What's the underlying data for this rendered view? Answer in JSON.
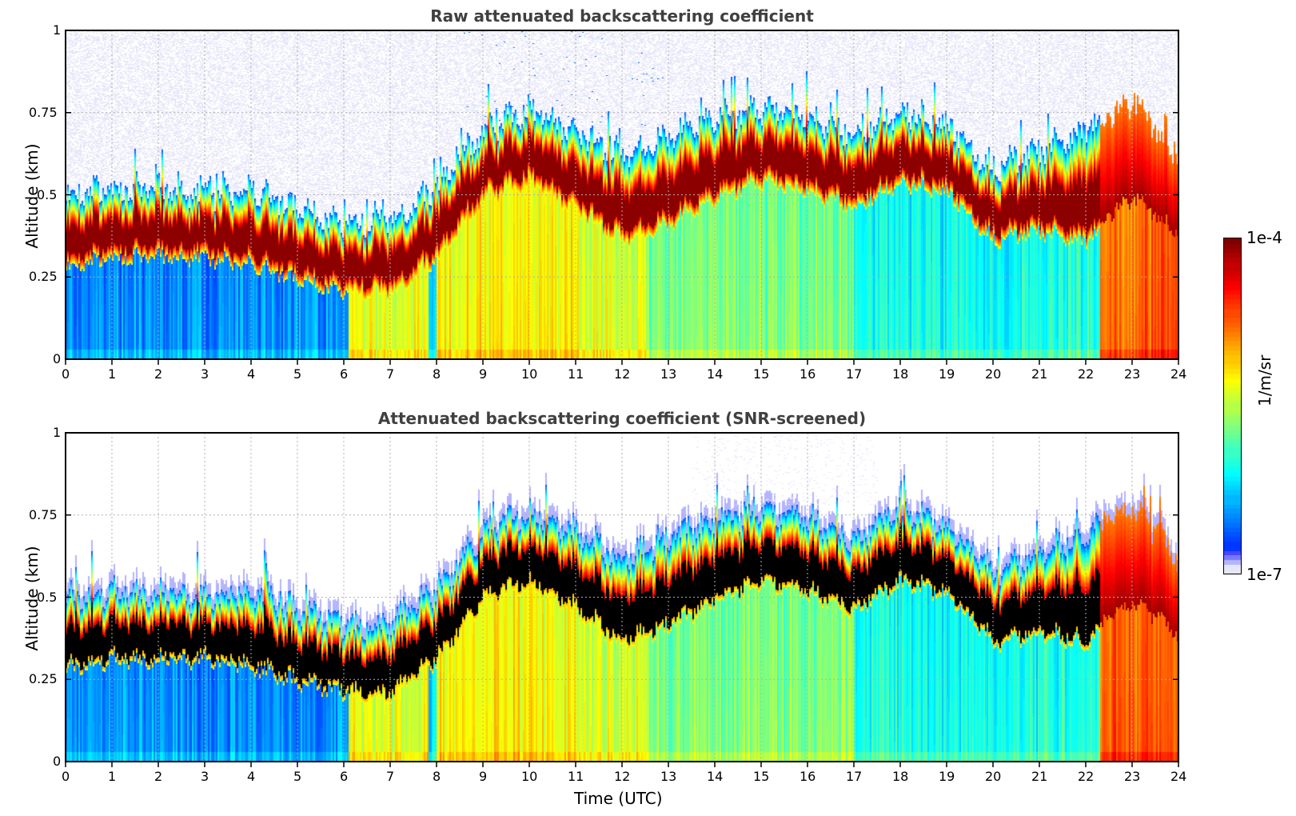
{
  "chart_data": [
    {
      "type": "heatmap",
      "title": "Raw attenuated backscattering coefficient",
      "xlabel": "",
      "ylabel": "Altitude (km)",
      "xlim": [
        0,
        24
      ],
      "ylim": [
        0,
        1
      ],
      "xticks": [
        "0",
        "1",
        "2",
        "3",
        "4",
        "5",
        "6",
        "7",
        "8",
        "9",
        "10",
        "11",
        "12",
        "13",
        "14",
        "15",
        "16",
        "17",
        "18",
        "19",
        "20",
        "21",
        "22",
        "23",
        "24"
      ],
      "yticks": [
        "0",
        "0.25",
        "0.5",
        "0.75",
        "1"
      ],
      "grid": true,
      "snr_screened": false,
      "time_hours": [
        0,
        1,
        2,
        3,
        4,
        5,
        6,
        7,
        8,
        9,
        10,
        11,
        12,
        13,
        14,
        15,
        16,
        17,
        18,
        19,
        20,
        21,
        22,
        23,
        24
      ],
      "layer_core_altitude_km": [
        0.37,
        0.4,
        0.4,
        0.4,
        0.38,
        0.33,
        0.3,
        0.29,
        0.4,
        0.58,
        0.63,
        0.55,
        0.45,
        0.5,
        0.58,
        0.63,
        0.6,
        0.55,
        0.63,
        0.6,
        0.45,
        0.48,
        0.45,
        0.55,
        0.45
      ],
      "layer_top_altitude_km": [
        0.5,
        0.52,
        0.52,
        0.5,
        0.52,
        0.46,
        0.42,
        0.42,
        0.53,
        0.7,
        0.76,
        0.7,
        0.62,
        0.68,
        0.74,
        0.76,
        0.74,
        0.68,
        0.76,
        0.72,
        0.58,
        0.64,
        0.7,
        0.78,
        0.62
      ],
      "below_layer_regimes": [
        {
          "from_h": 0,
          "to_h": 6.1,
          "level": 0.18
        },
        {
          "from_h": 6.1,
          "to_h": 7.8,
          "level": 0.55
        },
        {
          "from_h": 7.8,
          "to_h": 8.0,
          "level": 0.25
        },
        {
          "from_h": 8.0,
          "to_h": 11.0,
          "level": 0.6
        },
        {
          "from_h": 11.0,
          "to_h": 12.5,
          "level": 0.55
        },
        {
          "from_h": 12.5,
          "to_h": 17.0,
          "level": 0.45
        },
        {
          "from_h": 17.0,
          "to_h": 22.3,
          "level": 0.33
        },
        {
          "from_h": 22.3,
          "to_h": 24.0,
          "level": 0.76
        }
      ]
    },
    {
      "type": "heatmap",
      "title": "Attenuated backscattering coefficient (SNR-screened)",
      "xlabel": "Time (UTC)",
      "ylabel": "Altitude (km)",
      "xlim": [
        0,
        24
      ],
      "ylim": [
        0,
        1
      ],
      "xticks": [
        "0",
        "1",
        "2",
        "3",
        "4",
        "5",
        "6",
        "7",
        "8",
        "9",
        "10",
        "11",
        "12",
        "13",
        "14",
        "15",
        "16",
        "17",
        "18",
        "19",
        "20",
        "21",
        "22",
        "23",
        "24"
      ],
      "yticks": [
        "0",
        "0.25",
        "0.5",
        "0.75",
        "1"
      ],
      "grid": true,
      "snr_screened": true,
      "saturated_color": "#000000"
    }
  ],
  "colorbar": {
    "label": "1/m/sr",
    "max_label": "1e-4",
    "min_label": "1e-7",
    "scale": "log",
    "range": [
      1e-07,
      0.0001
    ],
    "colormap": "jet",
    "low_end_colors": [
      "#e6e6fa",
      "#b4b4ff",
      "#7878ff",
      "#4646ff"
    ]
  }
}
